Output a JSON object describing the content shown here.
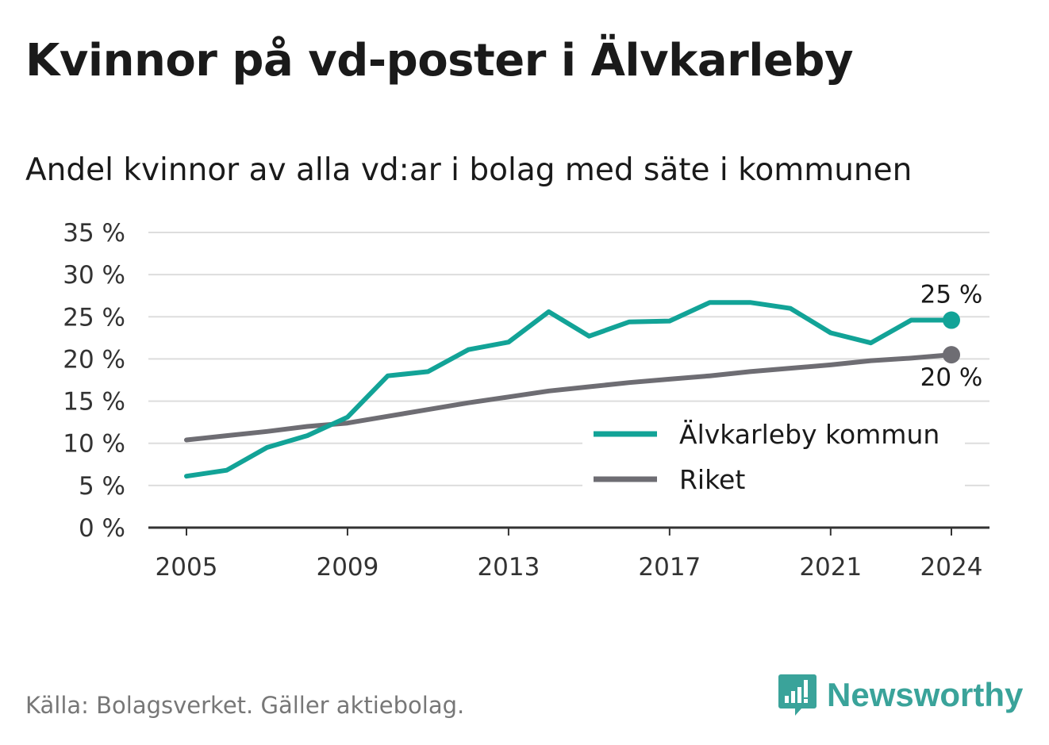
{
  "title": "Kvinnor på vd-poster i Älvkarleby",
  "subtitle": "Andel kvinnor av alla vd:ar i bolag med säte i kommunen",
  "source": "Källa: Bolagsverket. Gäller aktiebolag.",
  "brand": "Newsworthy",
  "colors": {
    "municipality": "#12a397",
    "national": "#6e6d73",
    "grid": "#dddddd",
    "axis": "#333333",
    "brand": "#3aa39a"
  },
  "chart_data": {
    "type": "line",
    "title": "Kvinnor på vd-poster i Älvkarleby",
    "subtitle": "Andel kvinnor av alla vd:ar i bolag med säte i kommunen",
    "xlabel": "",
    "ylabel": "",
    "x": [
      2005,
      2006,
      2007,
      2008,
      2009,
      2010,
      2011,
      2012,
      2013,
      2014,
      2015,
      2016,
      2017,
      2018,
      2019,
      2020,
      2021,
      2022,
      2023,
      2024
    ],
    "xticks": [
      2005,
      2009,
      2013,
      2017,
      2021,
      2024
    ],
    "xtick_labels": [
      "2005",
      "2009",
      "2013",
      "2017",
      "2021",
      "2024"
    ],
    "ylim": [
      0,
      35
    ],
    "yticks": [
      0,
      5,
      10,
      15,
      20,
      25,
      30,
      35
    ],
    "ytick_labels": [
      "0 %",
      "5 %",
      "10 %",
      "15 %",
      "20 %",
      "25 %",
      "30 %",
      "35 %"
    ],
    "series": [
      {
        "name": "Älvkarleby kommun",
        "values": [
          6.1,
          6.8,
          9.5,
          10.9,
          13.1,
          18.0,
          18.5,
          21.1,
          22.0,
          25.6,
          22.7,
          24.4,
          24.5,
          26.7,
          26.7,
          26.0,
          23.1,
          21.9,
          24.6,
          24.6
        ],
        "end_label": "25 %"
      },
      {
        "name": "Riket",
        "values": [
          10.4,
          10.9,
          11.4,
          12.0,
          12.4,
          13.2,
          14.0,
          14.8,
          15.5,
          16.2,
          16.7,
          17.2,
          17.6,
          18.0,
          18.5,
          18.9,
          19.3,
          19.8,
          20.1,
          20.5
        ],
        "end_label": "20 %"
      }
    ],
    "legend_position": "bottom-right",
    "grid": true
  }
}
